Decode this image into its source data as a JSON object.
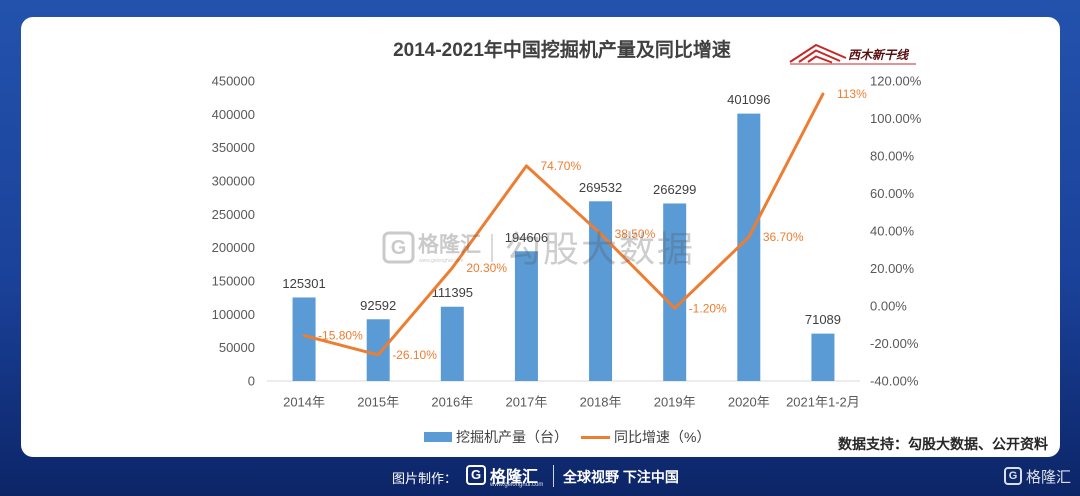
{
  "chart_data": {
    "type": "bar",
    "title": "2014-2021年中国挖掘机产量及同比增速",
    "categories": [
      "2014年",
      "2015年",
      "2016年",
      "2017年",
      "2018年",
      "2019年",
      "2020年",
      "2021年1-2月"
    ],
    "series": [
      {
        "name": "挖掘机产量（台）",
        "type": "bar",
        "axis": "left",
        "color": "#5b9bd5",
        "values": [
          125301,
          92592,
          111395,
          194606,
          269532,
          266299,
          401096,
          71089
        ]
      },
      {
        "name": "同比增速（%）",
        "type": "line",
        "axis": "right",
        "color": "#ed7d31",
        "values": [
          -15.8,
          -26.1,
          20.3,
          74.7,
          38.5,
          -1.2,
          36.7,
          113
        ],
        "labels": [
          "-15.80%",
          "-26.10%",
          "20.30%",
          "74.70%",
          "38.50%",
          "-1.20%",
          "36.70%",
          "113%"
        ]
      }
    ],
    "y_left": {
      "min": 0,
      "max": 450000,
      "step": 50000,
      "ticks": [
        "0",
        "50000",
        "100000",
        "150000",
        "200000",
        "250000",
        "300000",
        "350000",
        "400000",
        "450000"
      ]
    },
    "y_right": {
      "min": -40,
      "max": 120,
      "step": 20,
      "ticks": [
        "-40.00%",
        "-20.00%",
        "0.00%",
        "20.00%",
        "40.00%",
        "60.00%",
        "80.00%",
        "100.00%",
        "120.00%"
      ]
    },
    "grid": false,
    "legend": "bottom"
  },
  "source": "数据支持：勾股大数据、公开资料",
  "watermark": {
    "mark": "G",
    "brand": "格隆汇",
    "url": "www.gelonghui.com",
    "product": "勾股大数据"
  },
  "logo": {
    "text": "西木新干线"
  },
  "footer": {
    "made_by": "图片制作：",
    "mark": "G",
    "brand": "格隆汇",
    "url": "www.gelonghui.com",
    "slogan": "全球视野 下注中国",
    "corner_brand": "格隆汇"
  }
}
